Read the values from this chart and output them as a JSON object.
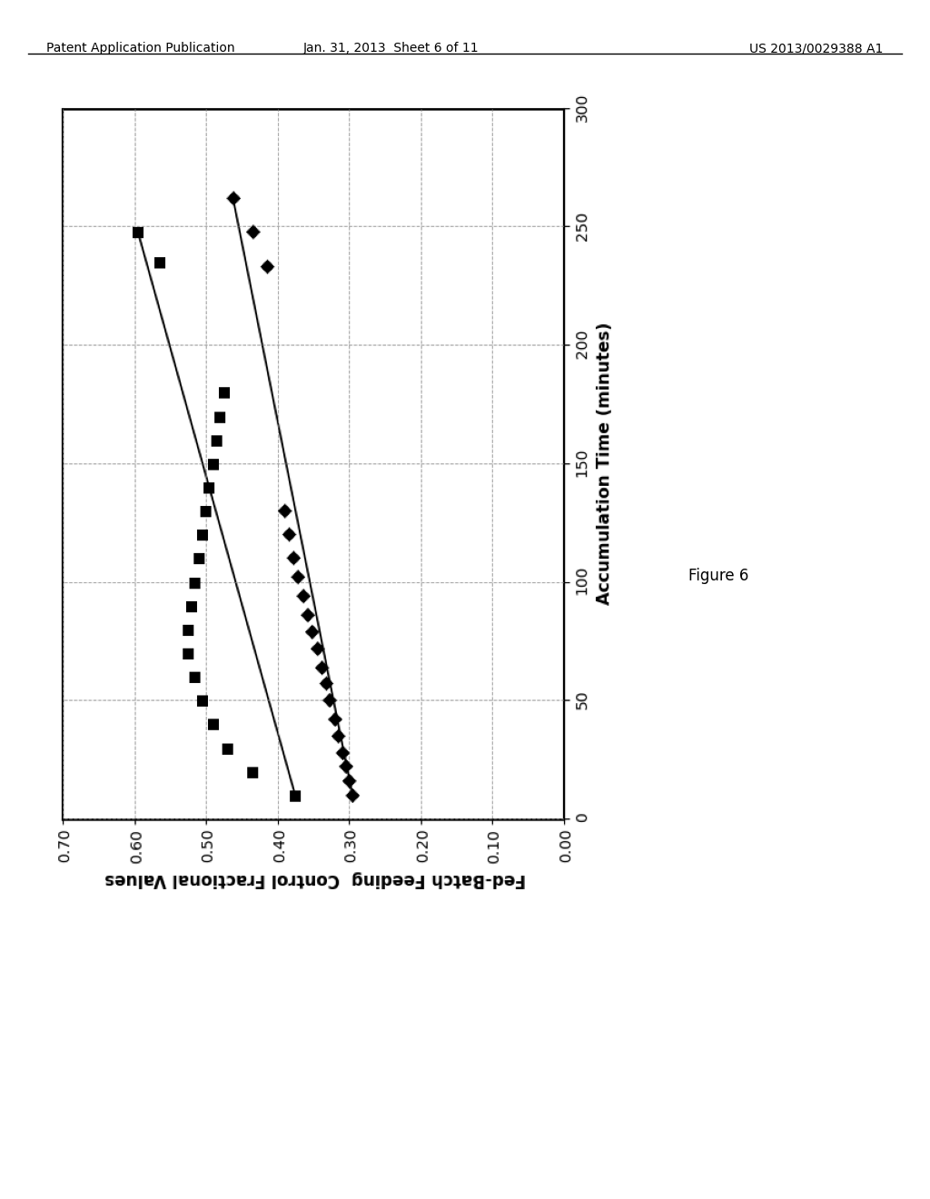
{
  "header_left": "Patent Application Publication",
  "header_mid": "Jan. 31, 2013  Sheet 6 of 11",
  "header_right": "US 2013/0029388 A1",
  "figure_label": "Figure 6",
  "xlabel": "Accumulation Time (minutes)",
  "ylabel": "Fed-Batch Feeding  Control Fractional Values",
  "xlim": [
    0,
    300
  ],
  "ylim": [
    0.0,
    0.7
  ],
  "yticks": [
    0.0,
    0.1,
    0.2,
    0.3,
    0.4,
    0.5,
    0.6,
    0.7
  ],
  "xticks": [
    0,
    50,
    100,
    150,
    200,
    250,
    300
  ],
  "background_color": "#ffffff",
  "sq_x": [
    10,
    20,
    30,
    40,
    50,
    60,
    70,
    80,
    90,
    100,
    110,
    120,
    130,
    140,
    150,
    160,
    170,
    180,
    235,
    248
  ],
  "sq_y": [
    0.375,
    0.435,
    0.47,
    0.49,
    0.505,
    0.515,
    0.525,
    0.525,
    0.52,
    0.515,
    0.51,
    0.505,
    0.5,
    0.495,
    0.49,
    0.485,
    0.48,
    0.475,
    0.565,
    0.595
  ],
  "dm_x": [
    10,
    16,
    22,
    28,
    35,
    42,
    50,
    57,
    64,
    72,
    79,
    86,
    94,
    102,
    110,
    120,
    130,
    233,
    248,
    262
  ],
  "dm_y": [
    0.295,
    0.3,
    0.305,
    0.31,
    0.315,
    0.32,
    0.328,
    0.333,
    0.338,
    0.345,
    0.352,
    0.358,
    0.365,
    0.372,
    0.378,
    0.385,
    0.39,
    0.415,
    0.435,
    0.462
  ]
}
